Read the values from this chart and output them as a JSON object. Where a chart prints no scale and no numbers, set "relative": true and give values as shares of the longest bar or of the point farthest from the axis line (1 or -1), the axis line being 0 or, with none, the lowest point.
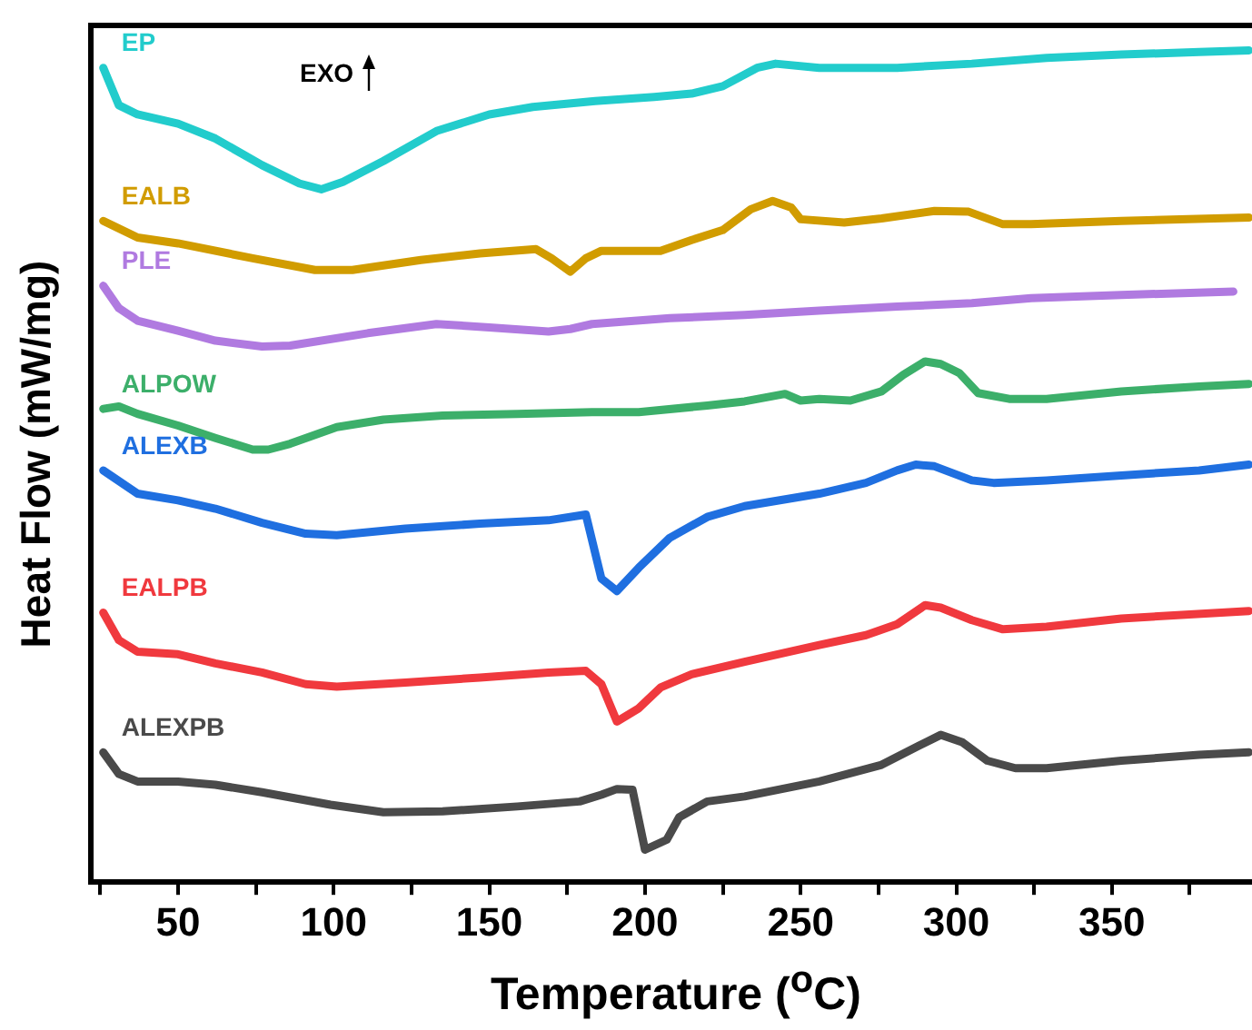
{
  "chart_data": {
    "type": "line",
    "relative": true,
    "xlabel": "Temperature ($^{o}$C)",
    "ylabel": "Heat Flow (mW/mg)",
    "annotations": [
      "EXO"
    ],
    "xlim": [
      22,
      395
    ],
    "xticks": [
      {
        "value": 25,
        "label": null
      },
      50,
      {
        "value": 75,
        "label": null
      },
      100,
      {
        "value": 125,
        "label": null
      },
      150,
      {
        "value": 175,
        "label": null
      },
      200,
      {
        "value": 225,
        "label": null
      },
      250,
      {
        "value": 275,
        "label": null
      },
      300,
      {
        "value": 325,
        "label": null
      },
      350,
      {
        "value": 375,
        "label": null
      }
    ],
    "grid": false,
    "legend": false,
    "marker": "none",
    "line_style": "solid",
    "series": [
      {
        "name": "EP",
        "color": "#22cccc",
        "x": [
          26,
          31,
          37,
          50,
          62,
          77,
          89,
          96,
          103,
          116,
          133,
          150,
          164,
          184,
          203,
          215,
          225,
          236,
          242,
          256,
          281,
          305,
          329,
          353,
          378,
          394
        ],
        "values": [
          0.979,
          0.934,
          0.923,
          0.912,
          0.894,
          0.862,
          0.84,
          0.833,
          0.842,
          0.867,
          0.903,
          0.923,
          0.932,
          0.939,
          0.944,
          0.948,
          0.957,
          0.979,
          0.984,
          0.979,
          0.979,
          0.984,
          0.991,
          0.995,
          0.998,
          1.0
        ]
      },
      {
        "name": "EALB",
        "color": "#d19c00",
        "x": [
          26,
          37,
          50,
          74,
          94,
          106,
          128,
          147,
          165,
          170,
          176,
          181,
          186,
          205,
          215,
          225,
          234,
          241,
          247,
          250,
          264,
          276,
          293,
          304,
          315,
          324,
          353,
          394
        ],
        "values": [
          0.795,
          0.775,
          0.768,
          0.75,
          0.736,
          0.736,
          0.748,
          0.756,
          0.761,
          0.75,
          0.734,
          0.75,
          0.759,
          0.759,
          0.772,
          0.784,
          0.809,
          0.819,
          0.811,
          0.797,
          0.793,
          0.798,
          0.807,
          0.806,
          0.791,
          0.791,
          0.795,
          0.799
        ]
      },
      {
        "name": "PLE",
        "color": "#b07ae0",
        "x": [
          26,
          31,
          37,
          50,
          62,
          77,
          86,
          111,
          133,
          150,
          169,
          176,
          183,
          208,
          232,
          256,
          281,
          305,
          324,
          353,
          389
        ],
        "values": [
          0.717,
          0.69,
          0.675,
          0.663,
          0.651,
          0.644,
          0.645,
          0.66,
          0.671,
          0.667,
          0.662,
          0.665,
          0.671,
          0.678,
          0.682,
          0.687,
          0.692,
          0.696,
          0.702,
          0.706,
          0.71
        ]
      },
      {
        "name": "ALPOW",
        "color": "#3caf6a",
        "x": [
          26,
          31,
          37,
          50,
          62,
          74,
          79,
          86,
          101,
          116,
          135,
          159,
          183,
          198,
          220,
          232,
          245,
          250,
          256,
          266,
          276,
          283,
          290,
          295,
          301,
          307,
          317,
          329,
          353,
          378,
          394
        ],
        "values": [
          0.569,
          0.572,
          0.563,
          0.549,
          0.534,
          0.52,
          0.52,
          0.527,
          0.547,
          0.556,
          0.561,
          0.563,
          0.565,
          0.565,
          0.573,
          0.578,
          0.587,
          0.579,
          0.581,
          0.579,
          0.59,
          0.61,
          0.626,
          0.623,
          0.612,
          0.588,
          0.581,
          0.581,
          0.59,
          0.596,
          0.599
        ]
      },
      {
        "name": "ALEXB",
        "color": "#1f6fe0",
        "x": [
          26,
          37,
          50,
          62,
          77,
          91,
          101,
          123,
          147,
          169,
          181,
          186,
          191,
          198,
          208,
          220,
          232,
          256,
          271,
          281,
          287,
          293,
          305,
          312,
          329,
          353,
          378,
          394
        ],
        "values": [
          0.495,
          0.467,
          0.459,
          0.449,
          0.432,
          0.419,
          0.417,
          0.425,
          0.431,
          0.435,
          0.442,
          0.365,
          0.35,
          0.378,
          0.414,
          0.439,
          0.452,
          0.467,
          0.48,
          0.495,
          0.502,
          0.5,
          0.483,
          0.48,
          0.483,
          0.489,
          0.495,
          0.502
        ]
      },
      {
        "name": "EALPB",
        "color": "#f0393e",
        "x": [
          26,
          31,
          37,
          50,
          62,
          77,
          91,
          101,
          123,
          147,
          169,
          181,
          186,
          191,
          198,
          205,
          215,
          232,
          256,
          271,
          281,
          290,
          295,
          305,
          315,
          329,
          353,
          394
        ],
        "values": [
          0.324,
          0.291,
          0.277,
          0.274,
          0.263,
          0.252,
          0.238,
          0.235,
          0.24,
          0.246,
          0.252,
          0.254,
          0.238,
          0.193,
          0.209,
          0.234,
          0.25,
          0.265,
          0.285,
          0.297,
          0.31,
          0.333,
          0.33,
          0.315,
          0.304,
          0.307,
          0.317,
          0.326
        ]
      },
      {
        "name": "ALEXPB",
        "color": "#4a4a4a",
        "x": [
          26,
          31,
          37,
          50,
          62,
          77,
          99,
          116,
          135,
          159,
          179,
          186,
          191,
          196,
          200,
          207,
          211,
          220,
          232,
          256,
          276,
          288,
          295,
          302,
          310,
          319,
          329,
          353,
          378,
          394
        ],
        "values": [
          0.156,
          0.13,
          0.121,
          0.121,
          0.117,
          0.108,
          0.093,
          0.084,
          0.085,
          0.091,
          0.097,
          0.105,
          0.112,
          0.111,
          0.039,
          0.051,
          0.078,
          0.097,
          0.103,
          0.121,
          0.141,
          0.164,
          0.177,
          0.168,
          0.146,
          0.137,
          0.137,
          0.146,
          0.153,
          0.156
        ]
      }
    ]
  }
}
